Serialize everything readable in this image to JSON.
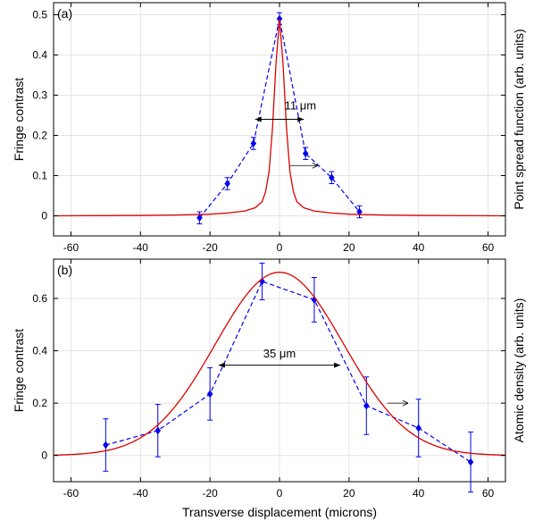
{
  "chart_data": [
    {
      "type": "scatter",
      "panel_label": "(a)",
      "ylabel": "Fringe contrast",
      "y2label": "Point spread function (arb. units)",
      "xlim": [
        -65,
        65
      ],
      "ylim": [
        -0.05,
        0.53
      ],
      "xticks": [
        -60,
        -40,
        -20,
        0,
        20,
        40,
        60
      ],
      "yticks": [
        0,
        0.1,
        0.2,
        0.3,
        0.4,
        0.5
      ],
      "ytick_labels": [
        "0",
        "0.1",
        "0.2",
        "0.3",
        "0.4",
        "0.5"
      ],
      "grid": true,
      "series": [
        {
          "style": "dashed-markers",
          "color": "#0000ee",
          "x": [
            -23,
            -15,
            -7.5,
            0,
            7.5,
            15,
            23
          ],
          "y": [
            -0.005,
            0.08,
            0.18,
            0.49,
            0.155,
            0.095,
            0.01
          ],
          "err": [
            0.015,
            0.015,
            0.015,
            0.015,
            0.015,
            0.015,
            0.015
          ]
        },
        {
          "style": "line",
          "color": "#dd0000",
          "x": [
            -65,
            -40,
            -30,
            -20,
            -15,
            -10,
            -7,
            -5,
            -4,
            -3,
            -2,
            -1,
            0,
            1,
            2,
            3,
            4,
            5,
            7,
            10,
            15,
            20,
            30,
            40,
            65
          ],
          "y": [
            0,
            0.001,
            0.002,
            0.004,
            0.007,
            0.012,
            0.02,
            0.035,
            0.06,
            0.11,
            0.22,
            0.38,
            0.49,
            0.38,
            0.22,
            0.11,
            0.06,
            0.035,
            0.02,
            0.012,
            0.007,
            0.004,
            0.002,
            0.001,
            0
          ]
        }
      ],
      "annotations": [
        {
          "text": "11 μm",
          "span": [
            -7,
            7
          ],
          "y": 0.24,
          "text_x": 6,
          "text_y": 0.265
        },
        {
          "text": "",
          "arrow_from": [
            3,
            0.125
          ],
          "arrow_to": [
            11,
            0.125
          ]
        }
      ]
    },
    {
      "type": "scatter",
      "panel_label": "(b)",
      "ylabel": "Fringe contrast",
      "y2label": "Atomic density (arb. units)",
      "xlabel": "Transverse displacement (microns)",
      "xlim": [
        -65,
        65
      ],
      "ylim": [
        -0.1,
        0.75
      ],
      "xticks": [
        -60,
        -40,
        -20,
        0,
        20,
        40,
        60
      ],
      "yticks": [
        0,
        0.2,
        0.4,
        0.6
      ],
      "ytick_labels": [
        "0",
        "0.2",
        "0.4",
        "0.6"
      ],
      "grid": true,
      "series": [
        {
          "style": "dashed-markers",
          "color": "#0000ee",
          "x": [
            -50,
            -35,
            -20,
            -5,
            10,
            25,
            40,
            55
          ],
          "y": [
            0.04,
            0.095,
            0.235,
            0.665,
            0.595,
            0.19,
            0.105,
            -0.025
          ],
          "err": [
            0.1,
            0.1,
            0.1,
            0.07,
            0.085,
            0.11,
            0.11,
            0.115
          ]
        },
        {
          "style": "gaussian",
          "color": "#dd0000",
          "amplitude": 0.7,
          "center": 0,
          "sigma": 18.5
        }
      ],
      "annotations": [
        {
          "text": "35 μm",
          "span": [
            -17.5,
            17.5
          ],
          "y": 0.345,
          "text_x": 0,
          "text_y": 0.375
        },
        {
          "text": "",
          "arrow_from": [
            31,
            0.2
          ],
          "arrow_to": [
            37,
            0.2
          ]
        }
      ]
    }
  ]
}
